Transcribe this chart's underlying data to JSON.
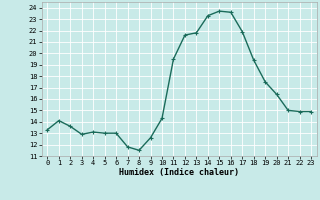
{
  "x": [
    0,
    1,
    2,
    3,
    4,
    5,
    6,
    7,
    8,
    9,
    10,
    11,
    12,
    13,
    14,
    15,
    16,
    17,
    18,
    19,
    20,
    21,
    22,
    23
  ],
  "y": [
    13.3,
    14.1,
    13.6,
    12.9,
    13.1,
    13.0,
    13.0,
    11.8,
    11.5,
    12.6,
    14.3,
    19.5,
    21.6,
    21.8,
    23.3,
    23.7,
    23.6,
    21.9,
    19.4,
    17.5,
    16.4,
    15.0,
    14.9,
    14.9
  ],
  "line_color": "#1a6b5a",
  "marker": "+",
  "marker_size": 3,
  "marker_linewidth": 0.8,
  "linewidth": 1.0,
  "xlabel": "Humidex (Indice chaleur)",
  "ylabel_ticks": [
    11,
    12,
    13,
    14,
    15,
    16,
    17,
    18,
    19,
    20,
    21,
    22,
    23,
    24
  ],
  "xlim": [
    -0.5,
    23.5
  ],
  "ylim": [
    11,
    24.5
  ],
  "bg_color": "#c8eae8",
  "grid_color": "#ffffff",
  "tick_fontsize": 5.0,
  "xlabel_fontsize": 6.0,
  "xlabel_fontweight": "bold"
}
